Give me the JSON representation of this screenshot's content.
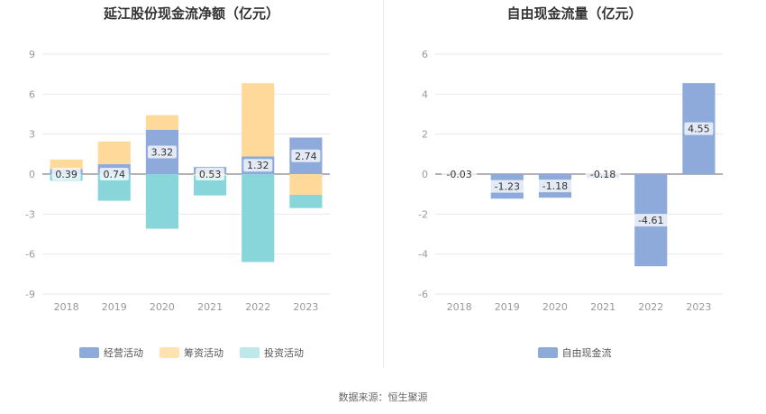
{
  "chart_data": [
    {
      "type": "bar",
      "stacked": true,
      "title": "延江股份现金流净额（亿元）",
      "categories": [
        "2018",
        "2019",
        "2020",
        "2021",
        "2022",
        "2023"
      ],
      "ylim": [
        -9,
        9
      ],
      "yticks": [
        9,
        6,
        3,
        0,
        -3,
        -6,
        -9
      ],
      "grid": true,
      "legend_position": "bottom",
      "series": [
        {
          "name": "经营活动",
          "color": "#8eaadb",
          "values": [
            0.39,
            0.74,
            3.32,
            0.53,
            1.32,
            2.74
          ],
          "labels": [
            "0.39",
            "0.74",
            "3.32",
            "0.53",
            "1.32",
            "2.74"
          ]
        },
        {
          "name": "筹资活动",
          "color": "#ffd99a",
          "values": [
            0.7,
            1.7,
            1.1,
            -0.1,
            5.5,
            -1.55
          ]
        },
        {
          "name": "投资活动",
          "color": "#88d6da",
          "values": [
            -0.5,
            -2.0,
            -4.1,
            -1.5,
            -6.6,
            -1.0
          ]
        }
      ]
    },
    {
      "type": "bar",
      "title": "自由现金流量（亿元）",
      "categories": [
        "2018",
        "2019",
        "2020",
        "2021",
        "2022",
        "2023"
      ],
      "ylim": [
        -6,
        6
      ],
      "yticks": [
        6,
        4,
        2,
        0,
        -2,
        -4,
        -6
      ],
      "grid": true,
      "legend_position": "bottom",
      "series": [
        {
          "name": "自由现金流",
          "color": "#8eaadb",
          "values": [
            -0.03,
            -1.23,
            -1.18,
            -0.18,
            -4.61,
            4.55
          ],
          "labels": [
            "-0.03",
            "-1.23",
            "-1.18",
            "-0.18",
            "-4.61",
            "4.55"
          ]
        }
      ]
    }
  ],
  "legend_left": [
    "经营活动",
    "筹资活动",
    "投资活动"
  ],
  "legend_left_colors": [
    "#8eaadb",
    "#ffe2b0",
    "#bfe8ea"
  ],
  "legend_right": [
    "自由现金流"
  ],
  "source": "数据来源：恒生聚源"
}
